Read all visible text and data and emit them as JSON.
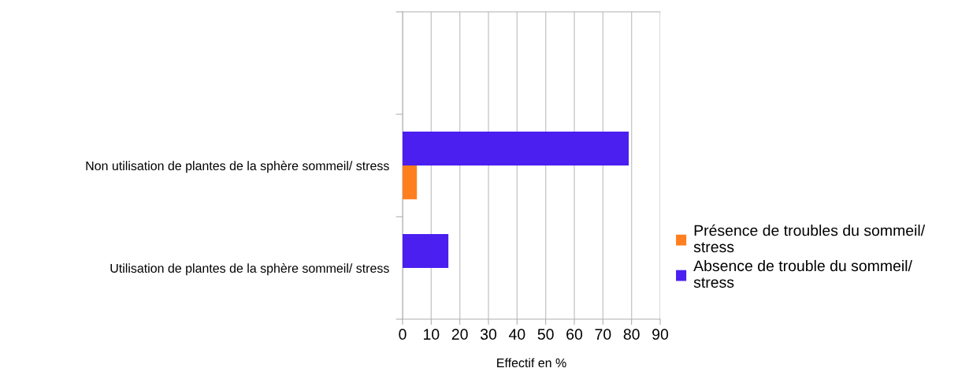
{
  "chart_data": {
    "type": "bar",
    "orientation": "horizontal",
    "xlabel": "Effectif en %",
    "categories": [
      null,
      "Non utilisation de plantes de la sphère sommeil/ stress",
      "Utilisation de plantes de la sphère sommeil/ stress"
    ],
    "series": [
      {
        "name": "Présence de troubles du sommeil/\nstress",
        "color": "#ff7f1e",
        "values": [
          null,
          5,
          null
        ]
      },
      {
        "name": "Absence de trouble du sommeil/\nstress",
        "color": "#4b1ff0",
        "values": [
          null,
          79,
          16
        ]
      }
    ],
    "xlim": [
      0,
      90
    ],
    "xticks": [
      0,
      10,
      20,
      30,
      40,
      50,
      60,
      70,
      80,
      90
    ],
    "grid": "x",
    "legend": "right"
  }
}
